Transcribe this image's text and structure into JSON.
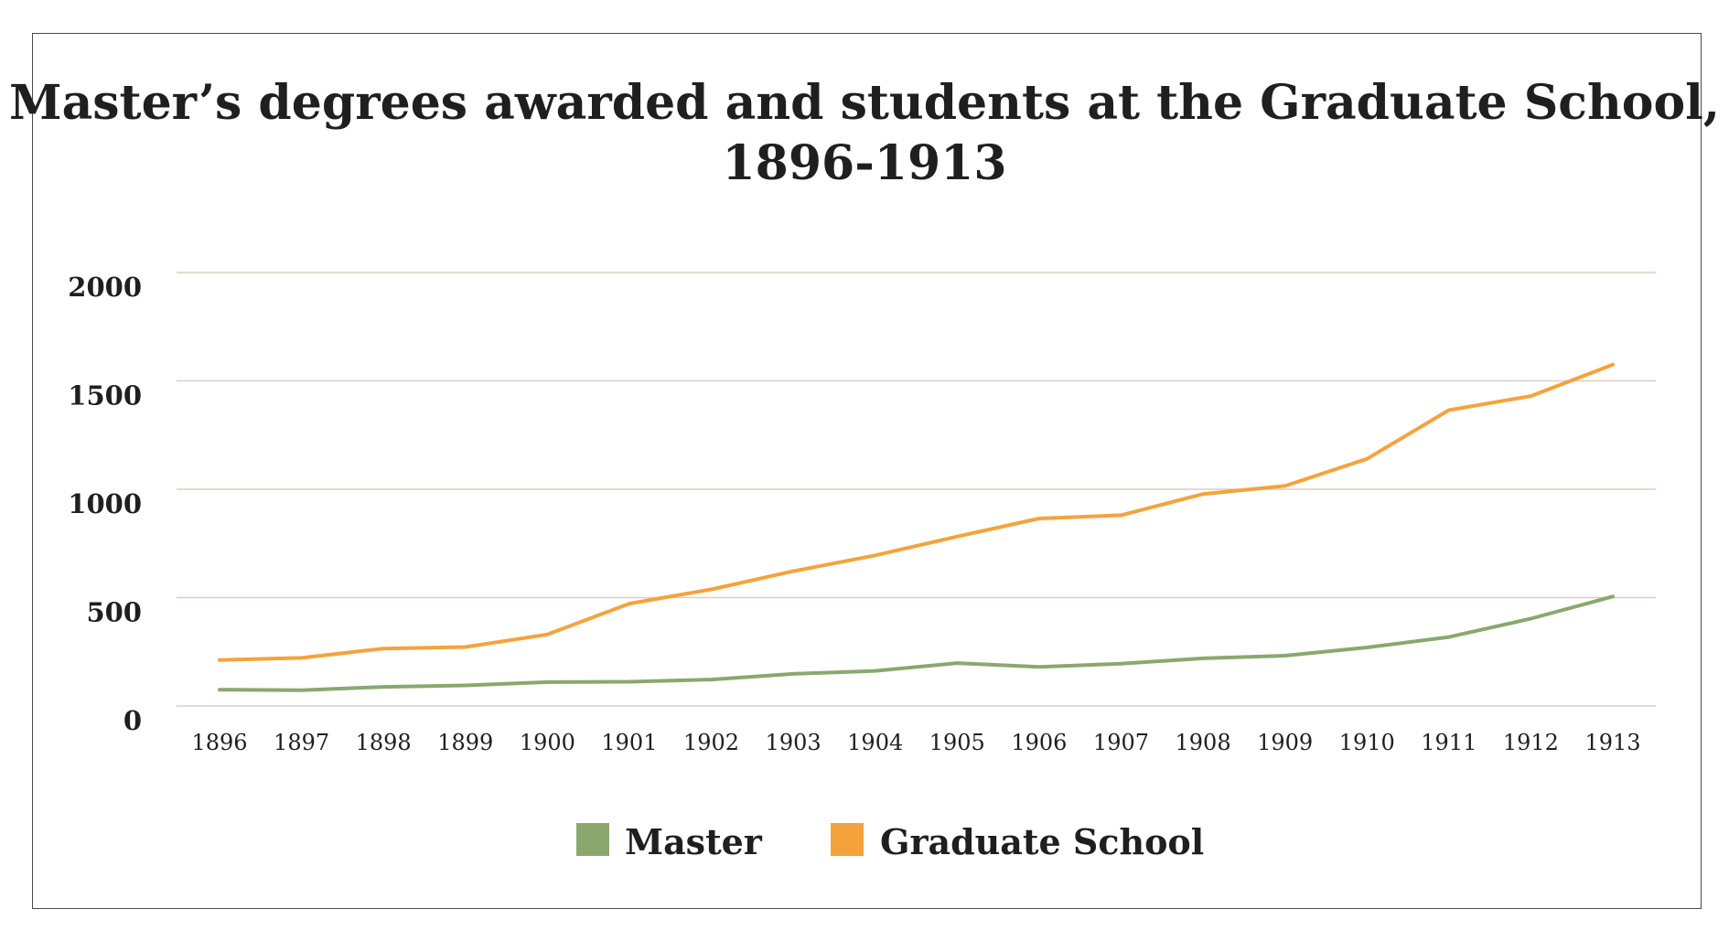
{
  "chart_data": {
    "type": "line",
    "title_lines": [
      "Master’s degrees awarded and students at the Graduate School,",
      "1896-1913"
    ],
    "xlabel": "",
    "ylabel": "",
    "x": [
      "1896",
      "1897",
      "1898",
      "1899",
      "1900",
      "1901",
      "1902",
      "1903",
      "1904",
      "1905",
      "1906",
      "1907",
      "1908",
      "1909",
      "1910",
      "1911",
      "1912",
      "1913"
    ],
    "ylim": [
      0,
      2000
    ],
    "yticks": [
      "0",
      "500",
      "1000",
      "1500",
      "2000"
    ],
    "grid": true,
    "legend_position": "bottom",
    "series": [
      {
        "name": "Master",
        "color": "#8aa86e",
        "values": [
          75,
          73,
          88,
          95,
          110,
          112,
          122,
          148,
          162,
          198,
          180,
          195,
          220,
          232,
          270,
          318,
          403,
          505
        ]
      },
      {
        "name": "Graduate School",
        "color": "#f4a33c",
        "values": [
          212,
          222,
          265,
          272,
          330,
          472,
          538,
          622,
          695,
          782,
          865,
          880,
          978,
          1015,
          1140,
          1365,
          1430,
          1575
        ]
      }
    ],
    "colors": {
      "grid": "#d9cfc0",
      "text": "#1f1f1f",
      "frame": "#4a4a4a"
    }
  }
}
